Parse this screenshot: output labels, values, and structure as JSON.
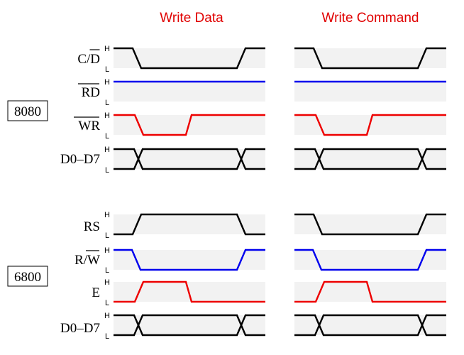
{
  "columns": [
    "Write Data",
    "Write Command"
  ],
  "level_marks": {
    "high": "H",
    "low": "L"
  },
  "colors": {
    "title": "#e00000",
    "black": "#000000",
    "blue": "#0000ee",
    "red": "#ee0000",
    "band": "#f2f2f2"
  },
  "groups": [
    {
      "name": "8080",
      "signals": [
        {
          "label": "C/D",
          "overline": "D",
          "color": "black",
          "kind": "level",
          "waves": [
            "H L L L H",
            "H L L L L H"
          ]
        },
        {
          "label": "RD",
          "overline": "RD",
          "color": "blue",
          "kind": "level",
          "waves": [
            "H",
            "H"
          ]
        },
        {
          "label": "WR",
          "overline": "WR",
          "color": "red",
          "kind": "level",
          "waves": [
            "H L H",
            "H L H"
          ]
        },
        {
          "label": "D0–D7",
          "overline": "",
          "color": "black",
          "kind": "bus",
          "waves": [
            "bus",
            "bus"
          ]
        }
      ]
    },
    {
      "name": "6800",
      "signals": [
        {
          "label": "RS",
          "overline": "",
          "color": "black",
          "kind": "level",
          "waves": [
            "L H L",
            "H L H"
          ]
        },
        {
          "label": "R/W",
          "overline": "W",
          "color": "blue",
          "kind": "level",
          "waves": [
            "H L H",
            "H L H"
          ]
        },
        {
          "label": "E",
          "overline": "",
          "color": "red",
          "kind": "level",
          "waves": [
            "L H L",
            "L H L"
          ]
        },
        {
          "label": "D0–D7",
          "overline": "",
          "color": "black",
          "kind": "bus",
          "waves": [
            "bus",
            "bus"
          ]
        }
      ]
    }
  ]
}
